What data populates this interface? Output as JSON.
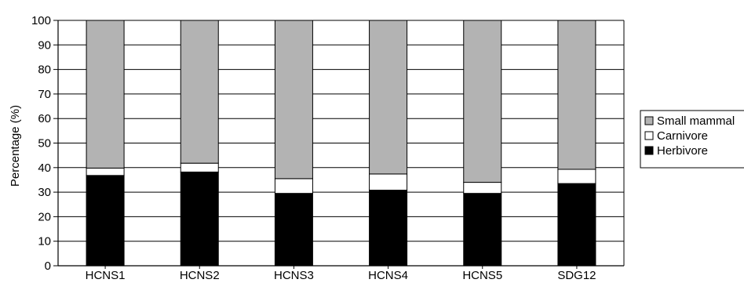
{
  "chart_data": {
    "type": "bar",
    "stacked": true,
    "title": "",
    "xlabel": "",
    "ylabel": "Percentage (%)",
    "ylim": [
      0,
      100
    ],
    "yticks": [
      0,
      10,
      20,
      30,
      40,
      50,
      60,
      70,
      80,
      90,
      100
    ],
    "grid": "horizontal gridlines",
    "legend_position": "right",
    "categories": [
      "HCNS1",
      "HCNS2",
      "HCNS3",
      "HCNS4",
      "HCNS5",
      "SDG12"
    ],
    "series": [
      {
        "name": "Herbivore",
        "color": "#000000",
        "values": [
          36.8,
          38.2,
          29.5,
          30.8,
          29.5,
          33.5
        ]
      },
      {
        "name": "Carnivore",
        "color": "#ffffff",
        "values": [
          3.0,
          3.6,
          6.0,
          6.6,
          4.5,
          5.8
        ]
      },
      {
        "name": "Small mammal",
        "color": "#b3b3b3",
        "values": [
          60.2,
          58.2,
          64.5,
          62.6,
          66.0,
          60.7
        ]
      }
    ],
    "legend": [
      "Small mammal",
      "Carnivore",
      "Herbivore"
    ]
  }
}
